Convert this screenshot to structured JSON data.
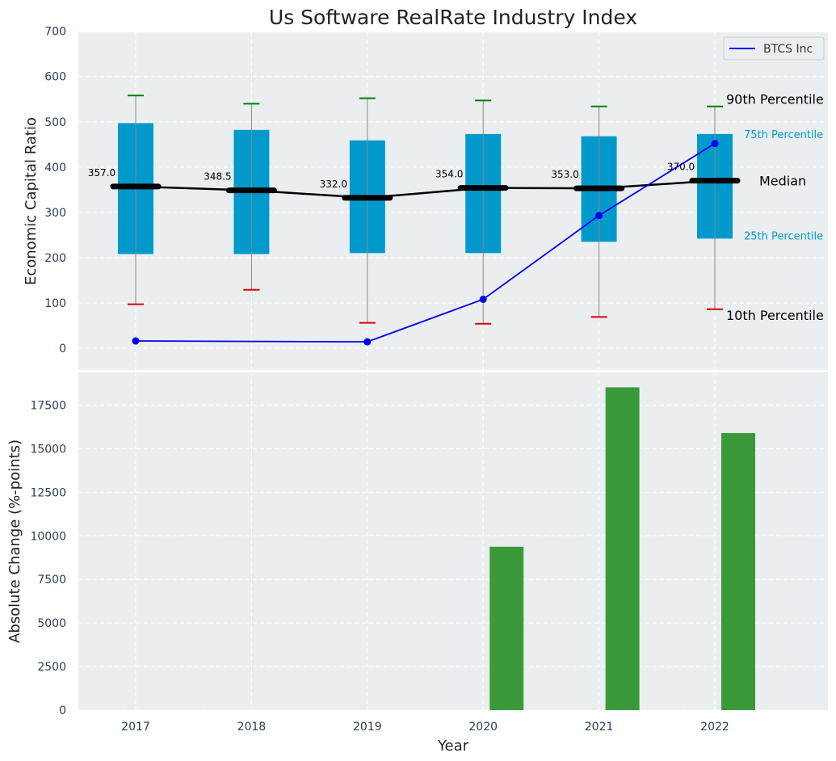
{
  "chart_data": [
    {
      "type": "box",
      "title": "Us Software RealRate Industry Index",
      "ylabel": "Economic Capital Ratio",
      "ylim": [
        -50,
        700
      ],
      "yticks": [
        "0",
        "100",
        "200",
        "300",
        "400",
        "500",
        "600",
        "700"
      ],
      "grid": true,
      "categories": [
        "2017",
        "2018",
        "2019",
        "2020",
        "2021",
        "2022"
      ],
      "boxes": [
        {
          "year": "2017",
          "p10": 97,
          "p25": 208,
          "median": 357,
          "p75": 497,
          "p90": 558,
          "median_label": "357.0"
        },
        {
          "year": "2018",
          "p10": 129,
          "p25": 208,
          "median": 348.5,
          "p75": 482,
          "p90": 540,
          "median_label": "348.5"
        },
        {
          "year": "2019",
          "p10": 56,
          "p25": 210,
          "median": 332,
          "p75": 459,
          "p90": 552,
          "median_label": "332.0"
        },
        {
          "year": "2020",
          "p10": 54,
          "p25": 210,
          "median": 354,
          "p75": 473,
          "p90": 547,
          "median_label": "354.0"
        },
        {
          "year": "2021",
          "p10": 69,
          "p25": 235,
          "median": 353,
          "p75": 468,
          "p90": 534,
          "median_label": "353.0"
        },
        {
          "year": "2022",
          "p10": 86,
          "p25": 242,
          "median": 370,
          "p75": 473,
          "p90": 534,
          "median_label": "370.0"
        }
      ],
      "series": [
        {
          "name": "BTCS Inc",
          "color": "#0000ee",
          "points": [
            [
              "2017",
              16
            ],
            [
              "2019",
              14
            ],
            [
              "2020",
              108
            ],
            [
              "2021",
              293
            ],
            [
              "2022",
              452
            ]
          ]
        }
      ],
      "legend": {
        "placement": "top-right",
        "entries": [
          "BTCS Inc"
        ]
      },
      "annotations": {
        "p90": "90th Percentile",
        "p75": "75th Percentile",
        "median": "Median",
        "p25": "25th Percentile",
        "p10": "10th Percentile"
      },
      "colors": {
        "box": "#0099cc",
        "median": "#000000",
        "p90_cap": "#008000",
        "p10_cap": "#dd0000",
        "whisker": "#888888"
      }
    },
    {
      "type": "bar",
      "xlabel": "Year",
      "ylabel": "Absolute Change (%-points)",
      "ylim": [
        0,
        19500
      ],
      "yticks": [
        "0",
        "2500",
        "5000",
        "7500",
        "10000",
        "12500",
        "15000",
        "17500"
      ],
      "grid": true,
      "categories": [
        "2017",
        "2018",
        "2019",
        "2020",
        "2021",
        "2022"
      ],
      "values": [
        0,
        0,
        0,
        9375,
        18525,
        15900
      ],
      "color": "#3a9a3a"
    }
  ]
}
